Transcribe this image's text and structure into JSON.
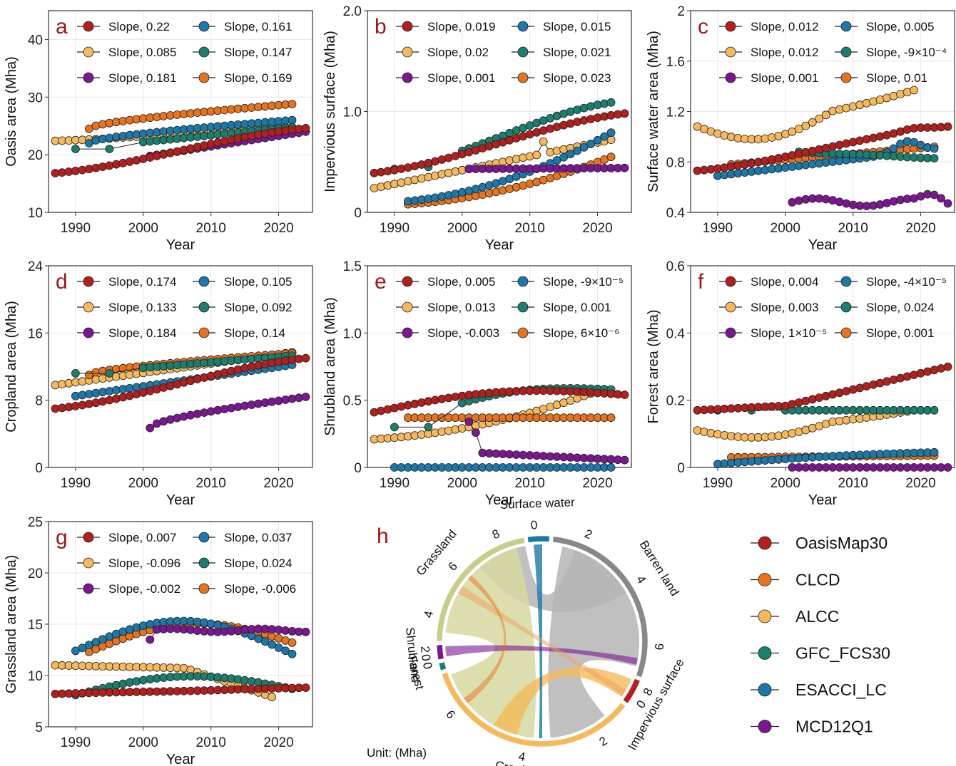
{
  "colors": {
    "OasisMap30": "#b21f1f",
    "CLCD": "#e8731d",
    "ALCC": "#f5b95a",
    "GFC_FCS30": "#1a7f6e",
    "ESACCI_LC": "#1c78a8",
    "MCD12Q1": "#7a1791"
  },
  "legend": {
    "items": [
      {
        "name": "OasisMap30",
        "color": "#b21f1f"
      },
      {
        "name": "CLCD",
        "color": "#e8731d"
      },
      {
        "name": "ALCC",
        "color": "#f5b95a"
      },
      {
        "name": "GFC_FCS30",
        "color": "#1a7f6e"
      },
      {
        "name": "ESACCI_LC",
        "color": "#1c78a8"
      },
      {
        "name": "MCD12Q1",
        "color": "#7a1791"
      }
    ]
  },
  "chart_data": [
    {
      "type": "scatter",
      "panel": "a",
      "ylabel": "Oasis area (Mha)",
      "xlabel": "Year",
      "xlim": [
        1986,
        2025
      ],
      "ylim": [
        10,
        45
      ],
      "yticks": [
        10,
        20,
        30,
        40
      ],
      "xticks": [
        1990,
        2000,
        2010,
        2020
      ],
      "series": [
        {
          "name": "OasisMap30",
          "slope_label": "Slope, 0.22",
          "x0": 1987,
          "x1": 2024,
          "y0": 16.8,
          "y1": 24.6,
          "shape": "ease"
        },
        {
          "name": "CLCD",
          "slope_label": "Slope, 0.169",
          "x0": 1992,
          "x1": 2022,
          "y0": 24.5,
          "y1": 28.8,
          "shape": "concave"
        },
        {
          "name": "ALCC",
          "slope_label": "Slope, 0.085",
          "x0": 1987,
          "x1": 2022,
          "y0": 22.4,
          "y1": 24.8,
          "shape": "ease"
        },
        {
          "name": "GFC_FCS30",
          "slope_label": "Slope, 0.147",
          "x0": 1990,
          "x1": 2022,
          "y0": 21.0,
          "y1": 24.8,
          "shape": "linear",
          "sparse": [
            1990,
            1995
          ],
          "line_to_dense": true
        },
        {
          "name": "ESACCI_LC",
          "slope_label": "Slope, 0.161",
          "x0": 1992,
          "x1": 2022,
          "y0": 22.0,
          "y1": 26.0,
          "shape": "concave"
        },
        {
          "name": "MCD12Q1",
          "slope_label": "Slope, 0.181",
          "x0": 2001,
          "x1": 2024,
          "y0": 19.8,
          "y1": 24.0,
          "shape": "linear",
          "jump": [
            2001,
            19.8,
            2002,
            20.6
          ]
        }
      ]
    },
    {
      "type": "scatter",
      "panel": "b",
      "ylabel": "Impervious surface (Mha)",
      "xlabel": "Year",
      "xlim": [
        1986,
        2025
      ],
      "ylim": [
        0,
        2.0
      ],
      "yticks": [
        0,
        1.0,
        2.0
      ],
      "ytick_labels": [
        "0",
        "1.0",
        "2.0"
      ],
      "xticks": [
        1990,
        2000,
        2010,
        2020
      ],
      "series": [
        {
          "name": "OasisMap30",
          "slope_label": "Slope, 0.019",
          "x0": 1987,
          "x1": 2024,
          "y0": 0.39,
          "y1": 0.98,
          "shape": "ease"
        },
        {
          "name": "CLCD",
          "slope_label": "Slope, 0.023",
          "x0": 1992,
          "x1": 2022,
          "y0": 0.08,
          "y1": 0.55,
          "shape": "convex"
        },
        {
          "name": "ALCC",
          "slope_label": "Slope, 0.02",
          "x0": 1987,
          "x1": 2022,
          "y0": 0.24,
          "y1": 0.72,
          "shape": "linear",
          "spike": [
            2012,
            0.7
          ]
        },
        {
          "name": "GFC_FCS30",
          "slope_label": "Slope, 0.021",
          "x0": 1990,
          "x1": 2022,
          "y0": 0.43,
          "y1": 1.09,
          "shape": "ease",
          "sparse": [
            1990,
            1995
          ],
          "line_to_dense": true,
          "jump": [
            1995,
            0.45,
            2000,
            0.72
          ]
        },
        {
          "name": "ESACCI_LC",
          "slope_label": "Slope, 0.015",
          "x0": 1992,
          "x1": 2022,
          "y0": 0.11,
          "y1": 0.79,
          "shape": "convex"
        },
        {
          "name": "MCD12Q1",
          "slope_label": "Slope, 0.001",
          "x0": 2001,
          "x1": 2024,
          "y0": 0.43,
          "y1": 0.44,
          "shape": "linear"
        }
      ]
    },
    {
      "type": "scatter",
      "panel": "c",
      "ylabel": "Surface water area (Mha)",
      "xlabel": "Year",
      "xlim": [
        1986,
        2025
      ],
      "ylim": [
        0.4,
        2.0
      ],
      "yticks": [
        0.4,
        0.8,
        1.2,
        1.6,
        2.0
      ],
      "xticks": [
        1990,
        2000,
        2010,
        2020
      ],
      "series": [
        {
          "name": "OasisMap30",
          "slope_label": "Slope, 0.012",
          "x0": 1987,
          "x1": 2024,
          "y0": 0.73,
          "y1": 1.08,
          "shape": "ease",
          "bump": [
            2019,
            0.02
          ]
        },
        {
          "name": "CLCD",
          "slope_label": "Slope, 0.01",
          "x0": 1992,
          "x1": 2022,
          "y0": 0.78,
          "y1": 0.92,
          "shape": "linear"
        },
        {
          "name": "ALCC",
          "slope_label": "Slope, 0.012",
          "x0": 1987,
          "x1": 2019,
          "y0": 1.08,
          "y1": 1.37,
          "shape": "uvalley"
        },
        {
          "name": "GFC_FCS30",
          "slope_label": "Slope, -9×10⁻⁴",
          "x0": 2002,
          "x1": 2022,
          "y0": 0.88,
          "y1": 0.83,
          "shape": "wavy"
        },
        {
          "name": "ESACCI_LC",
          "slope_label": "Slope, 0.005",
          "x0": 1990,
          "x1": 2022,
          "y0": 0.69,
          "y1": 0.9,
          "shape": "linear",
          "bump": [
            2018,
            0.09
          ]
        },
        {
          "name": "MCD12Q1",
          "slope_label": "Slope, 0.001",
          "x0": 2001,
          "x1": 2024,
          "y0": 0.48,
          "y1": 0.48,
          "shape": "wavy2"
        }
      ]
    },
    {
      "type": "scatter",
      "panel": "d",
      "ylabel": "Cropland area (Mha)",
      "xlabel": "Year",
      "xlim": [
        1986,
        2025
      ],
      "ylim": [
        0,
        24
      ],
      "yticks": [
        0,
        8,
        16,
        24
      ],
      "xticks": [
        1990,
        2000,
        2010,
        2020
      ],
      "series": [
        {
          "name": "OasisMap30",
          "slope_label": "Slope, 0.174",
          "x0": 1987,
          "x1": 2024,
          "y0": 7.0,
          "y1": 13.0,
          "shape": "ease"
        },
        {
          "name": "CLCD",
          "slope_label": "Slope, 0.14",
          "x0": 1992,
          "x1": 2022,
          "y0": 11.0,
          "y1": 13.6,
          "shape": "concave"
        },
        {
          "name": "ALCC",
          "slope_label": "Slope, 0.133",
          "x0": 1987,
          "x1": 2022,
          "y0": 9.8,
          "y1": 13.7,
          "shape": "linear"
        },
        {
          "name": "GFC_FCS30",
          "slope_label": "Slope, 0.092",
          "x0": 1990,
          "x1": 2022,
          "y0": 11.2,
          "y1": 13.3,
          "shape": "linear",
          "sparse": [
            1990,
            1995
          ],
          "line_to_dense": true
        },
        {
          "name": "ESACCI_LC",
          "slope_label": "Slope, 0.105",
          "x0": 1990,
          "x1": 2022,
          "y0": 8.5,
          "y1": 12.2,
          "shape": "linear"
        },
        {
          "name": "MCD12Q1",
          "slope_label": "Slope, 0.184",
          "x0": 2001,
          "x1": 2024,
          "y0": 4.7,
          "y1": 8.4,
          "shape": "concave"
        }
      ]
    },
    {
      "type": "scatter",
      "panel": "e",
      "ylabel": "Shrubland area (Mha)",
      "xlabel": "Year",
      "xlim": [
        1986,
        2025
      ],
      "ylim": [
        0,
        1.5
      ],
      "yticks": [
        0,
        0.5,
        1.0,
        1.5
      ],
      "ytick_labels": [
        "0",
        "0.5",
        "1.0",
        "1.5"
      ],
      "xticks": [
        1990,
        2000,
        2010,
        2020
      ],
      "series": [
        {
          "name": "OasisMap30",
          "slope_label": "Slope, 0.005",
          "x0": 1987,
          "x1": 2024,
          "y0": 0.41,
          "y1": 0.54,
          "shape": "hump"
        },
        {
          "name": "CLCD",
          "slope_label": "Slope, 6×10⁻⁶",
          "x0": 1992,
          "x1": 2022,
          "y0": 0.37,
          "y1": 0.37,
          "shape": "linear"
        },
        {
          "name": "ALCC",
          "slope_label": "Slope, 0.013",
          "x0": 1987,
          "x1": 2019,
          "y0": 0.21,
          "y1": 0.55,
          "shape": "convex"
        },
        {
          "name": "GFC_FCS30",
          "slope_label": "Slope, 0.001",
          "x0": 1990,
          "x1": 2022,
          "y0": 0.3,
          "y1": 0.58,
          "shape": "hump2",
          "sparse": [
            1990,
            1995
          ],
          "line_to_dense": true
        },
        {
          "name": "ESACCI_LC",
          "slope_label": "Slope, -9×10⁻⁵",
          "x0": 1990,
          "x1": 2022,
          "y0": 0.0,
          "y1": 0.0,
          "shape": "linear"
        },
        {
          "name": "MCD12Q1",
          "slope_label": "Slope, -0.003",
          "x0": 2001,
          "x1": 2024,
          "y0": 0.34,
          "y1": 0.05,
          "shape": "drop"
        }
      ]
    },
    {
      "type": "scatter",
      "panel": "f",
      "ylabel": "Forest area (Mha)",
      "xlabel": "Year",
      "xlim": [
        1986,
        2025
      ],
      "ylim": [
        0,
        0.6
      ],
      "yticks": [
        0,
        0.2,
        0.4,
        0.6
      ],
      "ytick_labels": [
        "0",
        "0.2",
        "0.4",
        "0.6"
      ],
      "xticks": [
        1990,
        2000,
        2010,
        2020
      ],
      "series": [
        {
          "name": "OasisMap30",
          "slope_label": "Slope, 0.004",
          "x0": 1987,
          "x1": 2024,
          "y0": 0.17,
          "y1": 0.3,
          "shape": "step"
        },
        {
          "name": "CLCD",
          "slope_label": "Slope, 0.001",
          "x0": 1992,
          "x1": 2022,
          "y0": 0.03,
          "y1": 0.035,
          "shape": "linear"
        },
        {
          "name": "ALCC",
          "slope_label": "Slope, 0.003",
          "x0": 1987,
          "x1": 2019,
          "y0": 0.11,
          "y1": 0.17,
          "shape": "uvalley"
        },
        {
          "name": "GFC_FCS30",
          "slope_label": "Slope, 0.024",
          "x0": 1990,
          "x1": 2022,
          "y0": 0.17,
          "y1": 0.17,
          "shape": "linear",
          "sparse": [
            1990,
            1995
          ],
          "line_to_dense": true
        },
        {
          "name": "ESACCI_LC",
          "slope_label": "Slope, -4×10⁻⁵",
          "x0": 1990,
          "x1": 2022,
          "y0": 0.01,
          "y1": 0.045,
          "shape": "hump"
        },
        {
          "name": "MCD12Q1",
          "slope_label": "Slope, 1×10⁻⁵",
          "x0": 2001,
          "x1": 2024,
          "y0": 0.0,
          "y1": 0.0,
          "shape": "linear"
        }
      ]
    },
    {
      "type": "scatter",
      "panel": "g",
      "ylabel": "Grassland area (Mha)",
      "xlabel": "Year",
      "xlim": [
        1986,
        2025
      ],
      "ylim": [
        5,
        25
      ],
      "yticks": [
        5,
        10,
        15,
        20,
        25
      ],
      "xticks": [
        1990,
        2000,
        2010,
        2020
      ],
      "series": [
        {
          "name": "OasisMap30",
          "slope_label": "Slope, 0.007",
          "x0": 1987,
          "x1": 2024,
          "y0": 8.2,
          "y1": 8.8,
          "shape": "wavy"
        },
        {
          "name": "CLCD",
          "slope_label": "Slope, -0.006",
          "x0": 1992,
          "x1": 2022,
          "y0": 12.3,
          "y1": 13.2,
          "shape": "hump"
        },
        {
          "name": "ALCC",
          "slope_label": "Slope, -0.096",
          "x0": 1987,
          "x1": 2019,
          "y0": 11.0,
          "y1": 7.9,
          "shape": "fall"
        },
        {
          "name": "GFC_FCS30",
          "slope_label": "Slope, 0.024",
          "x0": 1990,
          "x1": 2022,
          "y0": 8.1,
          "y1": 8.7,
          "shape": "hump"
        },
        {
          "name": "ESACCI_LC",
          "slope_label": "Slope, 0.037",
          "x0": 1990,
          "x1": 2022,
          "y0": 12.4,
          "y1": 12.1,
          "shape": "hump2"
        },
        {
          "name": "MCD12Q1",
          "slope_label": "Slope, -0.002",
          "x0": 2001,
          "x1": 2024,
          "y0": 13.5,
          "y1": 14.4,
          "shape": "plateau",
          "jump": [
            2001,
            13.5,
            2002,
            14.5
          ]
        }
      ]
    }
  ],
  "chord": {
    "panel": "h",
    "unit": "Unit: (Mha)",
    "sectors": [
      {
        "name": "Surface water",
        "ticks": [
          "0"
        ],
        "color": "#1c78a8"
      },
      {
        "name": "Barren land",
        "ticks": [
          "2",
          "4",
          "6"
        ],
        "color": "#888888"
      },
      {
        "name": "Impervious surface",
        "ticks": [
          "8",
          "0"
        ],
        "color": "#b21f1f"
      },
      {
        "name": "Cropland",
        "ticks": [
          "2",
          "4",
          "6"
        ],
        "color": "#f5b95a"
      },
      {
        "name": "Forest",
        "ticks": [
          "0"
        ],
        "color": "#1a7f6e"
      },
      {
        "name": "Shrubland",
        "ticks": [
          "0",
          "2"
        ],
        "color": "#7a1791"
      },
      {
        "name": "Grassland",
        "ticks": [
          "4",
          "6",
          "8"
        ],
        "color": "#c8cd8c"
      }
    ]
  }
}
